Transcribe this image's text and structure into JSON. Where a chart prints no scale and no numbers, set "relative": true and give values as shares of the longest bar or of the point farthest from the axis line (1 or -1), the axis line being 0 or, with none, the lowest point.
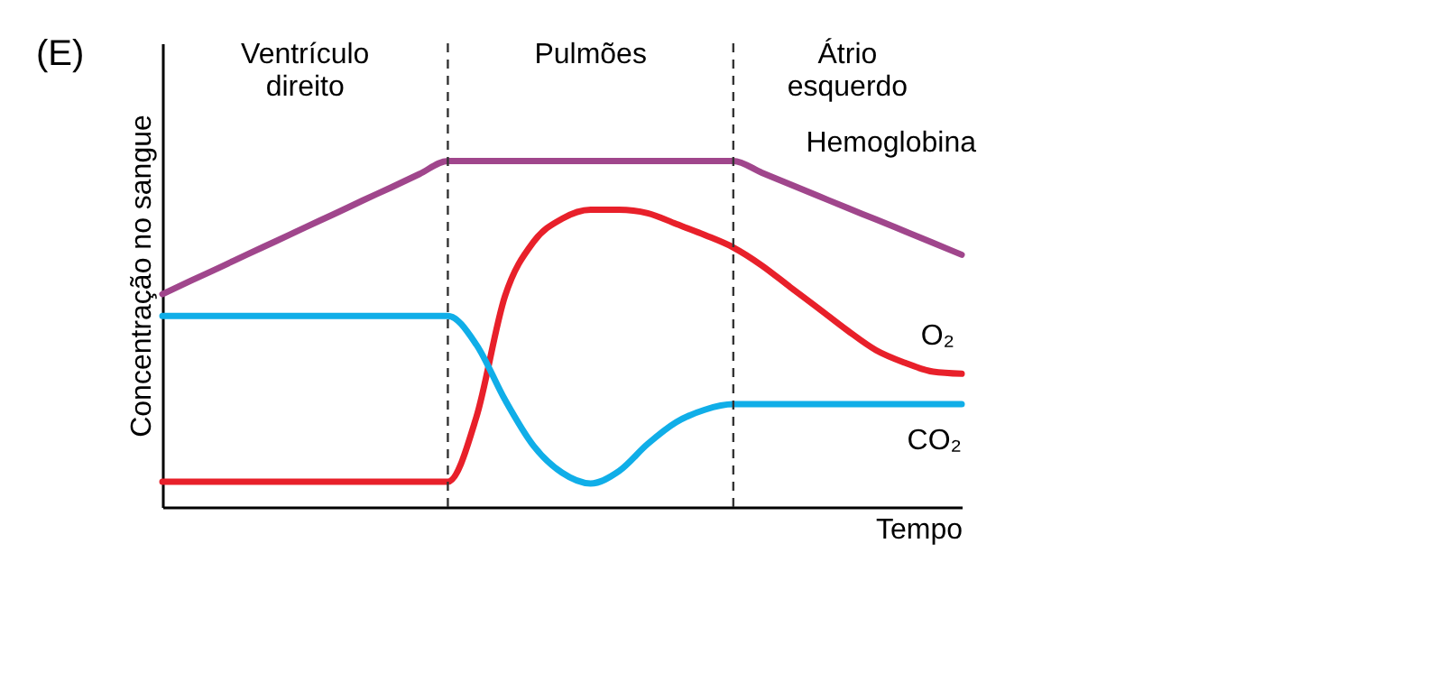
{
  "chart_data": {
    "type": "line",
    "title": "(E)",
    "xlabel": "Tempo",
    "ylabel": "Concentração no sangue",
    "relative": true,
    "categories": [
      null,
      null,
      null,
      null,
      null,
      null,
      null,
      null,
      null,
      null,
      null,
      null,
      null,
      null,
      null,
      null,
      null,
      null,
      null,
      null,
      null,
      null,
      null,
      null,
      null,
      null,
      null,
      null,
      null
    ],
    "series": [
      {
        "name": "Hemoglobina",
        "color": "#a0468c",
        "values": [
          0.615,
          0.654,
          0.692,
          0.731,
          0.769,
          0.808,
          0.846,
          0.885,
          0.923,
          0.962,
          1,
          1,
          1,
          1,
          1,
          1,
          1,
          1,
          1,
          1,
          1,
          0.966,
          0.932,
          0.898,
          0.864,
          0.831,
          0.797,
          0.763,
          0.729
        ]
      },
      {
        "name": "O₂",
        "color": "#e8202a",
        "values": [
          0.073,
          0.073,
          0.073,
          0.073,
          0.073,
          0.073,
          0.073,
          0.073,
          0.073,
          0.073,
          0.073,
          0.26,
          0.609,
          0.766,
          0.833,
          0.859,
          0.859,
          0.849,
          0.818,
          0.786,
          0.75,
          0.698,
          0.635,
          0.573,
          0.51,
          0.453,
          0.417,
          0.391,
          0.385
        ]
      },
      {
        "name": "CO₂",
        "color": "#10aee8",
        "values": [
          0.552,
          0.552,
          0.552,
          0.552,
          0.552,
          0.552,
          0.552,
          0.552,
          0.552,
          0.552,
          0.552,
          0.469,
          0.31,
          0.177,
          0.099,
          0.068,
          0.104,
          0.182,
          0.245,
          0.281,
          0.297,
          0.297,
          0.297,
          0.297,
          0.297,
          0.297,
          0.297,
          0.297,
          0.297
        ]
      }
    ],
    "annotations": [
      "Ventrículo direito",
      "Pulmões",
      "Átrio esquerdo"
    ],
    "marker": "none",
    "line_style": "solid"
  }
}
